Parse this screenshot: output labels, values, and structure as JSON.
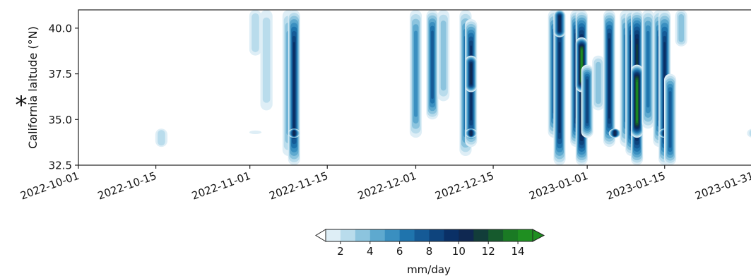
{
  "chart_data": {
    "type": "heatmap",
    "marker": "*",
    "ylabel": "California laitude (°N)",
    "xlim": [
      "2022-10-01",
      "2023-01-31"
    ],
    "ylim": [
      32.5,
      41.0
    ],
    "x_ticks": [
      "2022-10-01",
      "2022-10-15",
      "2022-11-01",
      "2022-11-15",
      "2022-12-01",
      "2022-12-15",
      "2023-01-01",
      "2023-01-15",
      "2023-01-31"
    ],
    "y_ticks": [
      32.5,
      35.0,
      37.5,
      40.0
    ],
    "colorbar": {
      "label": "mm/day",
      "ticks": [
        2,
        4,
        6,
        8,
        10,
        12,
        14
      ],
      "levels": [
        1,
        2,
        3,
        4,
        5,
        6,
        7,
        8,
        9,
        10,
        11,
        12,
        13,
        14,
        15
      ],
      "colors": [
        "#deeef6",
        "#b9dcec",
        "#8cc4de",
        "#5ea9cf",
        "#3a8fc0",
        "#1f74ad",
        "#155a96",
        "#0e447d",
        "#0a3066",
        "#0f2851",
        "#123d3a",
        "#165a2d",
        "#1a7a24",
        "#1f8f21"
      ],
      "under_color": "#ffffff",
      "over_color": "#1f8f21",
      "extend": "both"
    },
    "events": [
      {
        "date": "2022-10-16",
        "lat_min": 33.5,
        "lat_max": 34.5,
        "peak": 2
      },
      {
        "date": "2022-11-02",
        "lat_min": 38.5,
        "lat_max": 41.0,
        "peak": 2
      },
      {
        "date": "2022-11-02",
        "lat_min": 34.2,
        "lat_max": 34.4,
        "peak": 1
      },
      {
        "date": "2022-11-04",
        "lat_min": 35.5,
        "lat_max": 41.0,
        "peak": 2
      },
      {
        "date": "2022-11-08",
        "lat_min": 33.0,
        "lat_max": 41.0,
        "peak": 4
      },
      {
        "date": "2022-11-09",
        "lat_min": 32.5,
        "lat_max": 41.0,
        "peak": 9
      },
      {
        "date": "2022-11-09",
        "lat_min": 34.0,
        "lat_max": 34.5,
        "peak": 10
      },
      {
        "date": "2022-12-01",
        "lat_min": 34.0,
        "lat_max": 41.0,
        "peak": 5
      },
      {
        "date": "2022-12-04",
        "lat_min": 35.0,
        "lat_max": 41.0,
        "peak": 7
      },
      {
        "date": "2022-12-06",
        "lat_min": 36.0,
        "lat_max": 41.0,
        "peak": 3
      },
      {
        "date": "2022-12-10",
        "lat_min": 33.0,
        "lat_max": 41.0,
        "peak": 6
      },
      {
        "date": "2022-12-11",
        "lat_min": 33.5,
        "lat_max": 40.5,
        "peak": 9
      },
      {
        "date": "2022-12-11",
        "lat_min": 36.5,
        "lat_max": 38.5,
        "peak": 10
      },
      {
        "date": "2022-12-11",
        "lat_min": 34.0,
        "lat_max": 34.5,
        "peak": 10
      },
      {
        "date": "2022-12-26",
        "lat_min": 34.0,
        "lat_max": 41.0,
        "peak": 7
      },
      {
        "date": "2022-12-27",
        "lat_min": 32.5,
        "lat_max": 41.0,
        "peak": 9
      },
      {
        "date": "2022-12-27",
        "lat_min": 39.5,
        "lat_max": 41.0,
        "peak": 10
      },
      {
        "date": "2022-12-30",
        "lat_min": 33.5,
        "lat_max": 41.0,
        "peak": 9
      },
      {
        "date": "2022-12-31",
        "lat_min": 32.5,
        "lat_max": 41.0,
        "peak": 11
      },
      {
        "date": "2022-12-31",
        "lat_min": 36.5,
        "lat_max": 39.5,
        "peak": 14
      },
      {
        "date": "2023-01-01",
        "lat_min": 34.0,
        "lat_max": 38.0,
        "peak": 8
      },
      {
        "date": "2023-01-03",
        "lat_min": 35.5,
        "lat_max": 38.5,
        "peak": 3
      },
      {
        "date": "2023-01-05",
        "lat_min": 33.5,
        "lat_max": 41.0,
        "peak": 9
      },
      {
        "date": "2023-01-06",
        "lat_min": 34.0,
        "lat_max": 34.5,
        "peak": 10
      },
      {
        "date": "2023-01-08",
        "lat_min": 33.5,
        "lat_max": 41.0,
        "peak": 6
      },
      {
        "date": "2023-01-09",
        "lat_min": 33.0,
        "lat_max": 41.0,
        "peak": 9
      },
      {
        "date": "2023-01-10",
        "lat_min": 32.5,
        "lat_max": 41.0,
        "peak": 11
      },
      {
        "date": "2023-01-10",
        "lat_min": 34.0,
        "lat_max": 38.0,
        "peak": 14
      },
      {
        "date": "2023-01-12",
        "lat_min": 34.5,
        "lat_max": 41.0,
        "peak": 6
      },
      {
        "date": "2023-01-14",
        "lat_min": 33.5,
        "lat_max": 41.0,
        "peak": 7
      },
      {
        "date": "2023-01-15",
        "lat_min": 32.5,
        "lat_max": 41.0,
        "peak": 9
      },
      {
        "date": "2023-01-15",
        "lat_min": 34.0,
        "lat_max": 34.5,
        "peak": 10
      },
      {
        "date": "2023-01-16",
        "lat_min": 32.5,
        "lat_max": 37.5,
        "peak": 7
      },
      {
        "date": "2023-01-18",
        "lat_min": 39.0,
        "lat_max": 41.0,
        "peak": 3
      },
      {
        "date": "2023-01-31",
        "lat_min": 34.0,
        "lat_max": 34.5,
        "peak": 2
      }
    ]
  }
}
